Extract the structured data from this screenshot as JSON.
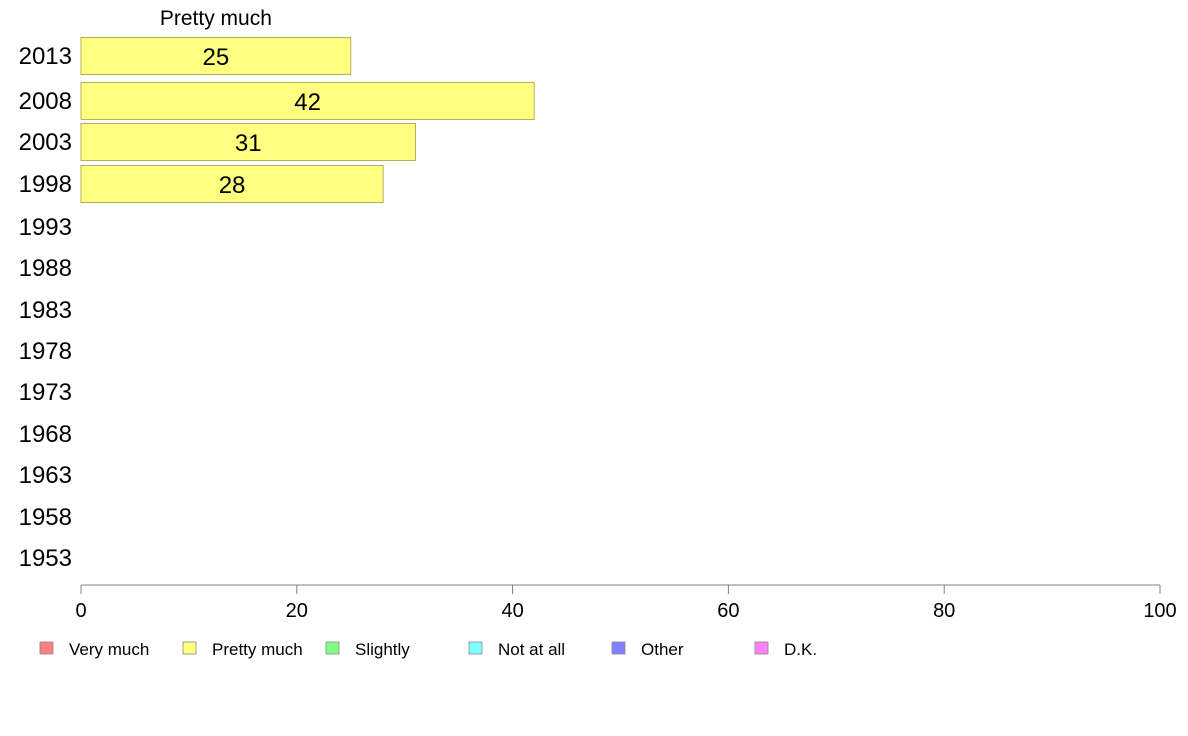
{
  "chart_data": {
    "type": "bar",
    "orientation": "horizontal",
    "categories": [
      "2013",
      "2008",
      "2003",
      "1998",
      "1993",
      "1988",
      "1983",
      "1978",
      "1973",
      "1968",
      "1963",
      "1958",
      "1953"
    ],
    "series": [
      {
        "name": "Pretty much",
        "color": "#ffff80",
        "values": [
          25,
          42,
          31,
          28,
          null,
          null,
          null,
          null,
          null,
          null,
          null,
          null,
          null
        ]
      }
    ],
    "xlim": [
      0,
      100
    ],
    "xticks": [
      0,
      20,
      40,
      60,
      80,
      100
    ],
    "grid": false,
    "legend_position": "bottom",
    "legend": [
      {
        "name": "Very much",
        "color": "#ff8080"
      },
      {
        "name": "Pretty much",
        "color": "#ffff80"
      },
      {
        "name": "Slightly",
        "color": "#80ff80"
      },
      {
        "name": "Not at all",
        "color": "#80ffff"
      },
      {
        "name": "Other",
        "color": "#8080ff"
      },
      {
        "name": "D.K.",
        "color": "#ff80ff"
      }
    ]
  }
}
